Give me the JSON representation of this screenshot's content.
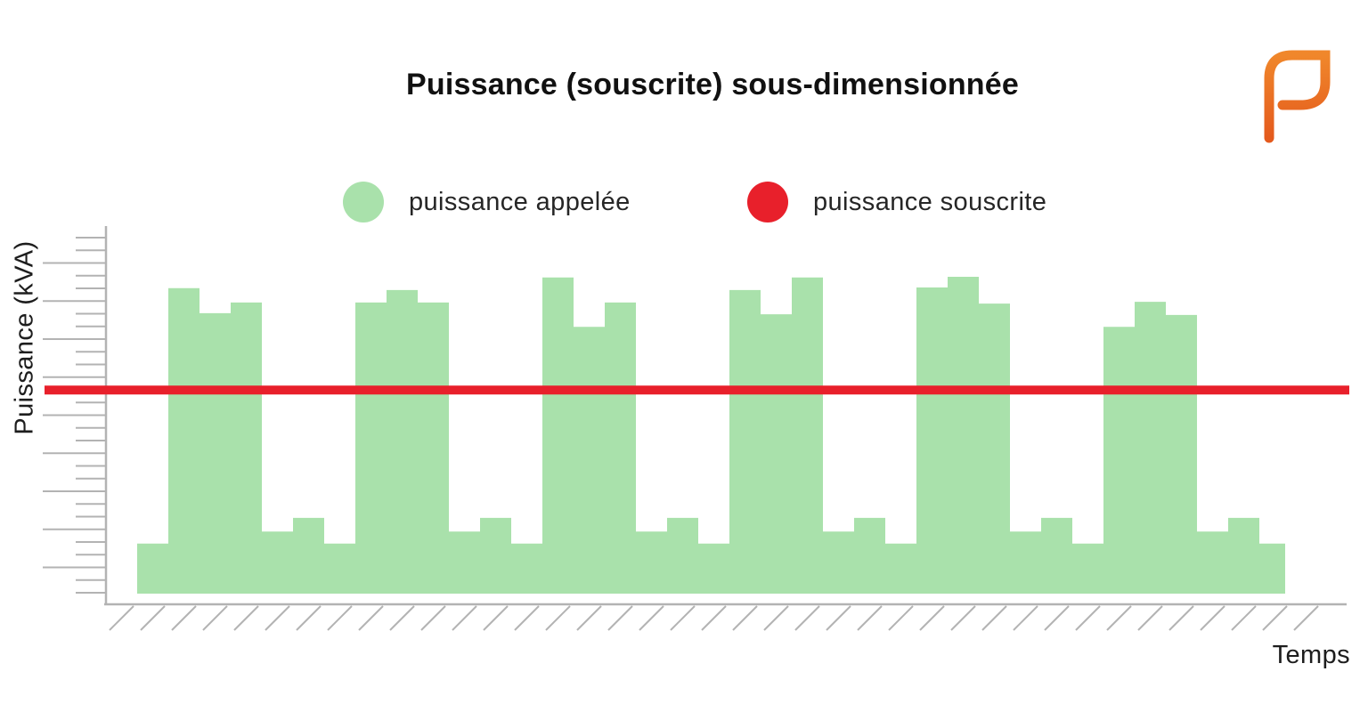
{
  "title": "Puissance (souscrite) sous-dimensionnée",
  "legend": [
    {
      "label": "puissance appelée",
      "color": "#a9e1ab",
      "swatch": "circle"
    },
    {
      "label": "puissance souscrite",
      "color": "#e8202b",
      "swatch": "circle"
    }
  ],
  "axes": {
    "y_label": "Puissance (kVA)",
    "x_label": "Temps",
    "y_tick_style": "ruler ticks without numeric labels, every 3rd tick long",
    "x_axis_style": "hatched ground line without tick labels",
    "axis_color": "#b3b3b3"
  },
  "logo": {
    "name": "p-leaf-logo",
    "color_top": "#f0872b",
    "color_bottom": "#e45a1d"
  },
  "colors": {
    "demand_area": "#a9e1ab",
    "subscribed_line": "#e8202b",
    "text": "#1d1d1d"
  },
  "chart_data": {
    "type": "area",
    "subtype": "step-area with constant threshold line",
    "title": "Puissance (souscrite) sous-dimensionnée",
    "xlabel": "Temps",
    "ylabel": "Puissance (kVA)",
    "ylim": [
      0,
      100
    ],
    "y_unit": "relative % of axis height (no numeric scale shown)",
    "x_unit": "equal time steps (no tick labels shown)",
    "grid": false,
    "legend_position": "top",
    "series": [
      {
        "name": "puissance appelée",
        "type": "step-area",
        "color": "#a9e1ab",
        "values": [
          13.6,
          83.1,
          76.3,
          79.2,
          16.9,
          20.6,
          13.6,
          79.2,
          82.6,
          79.2,
          16.9,
          20.6,
          13.6,
          86.0,
          72.6,
          79.2,
          16.9,
          20.6,
          13.6,
          82.6,
          76.0,
          86.0,
          16.9,
          20.6,
          13.6,
          83.3,
          86.2,
          78.9,
          16.9,
          20.6,
          13.6,
          72.6,
          79.4,
          75.8,
          16.9,
          20.6,
          13.6
        ]
      },
      {
        "name": "puissance souscrite",
        "type": "hline",
        "color": "#e8202b",
        "value": 55.4
      }
    ],
    "annotation": "all six demand peaks exceed the subscribed-power line"
  }
}
